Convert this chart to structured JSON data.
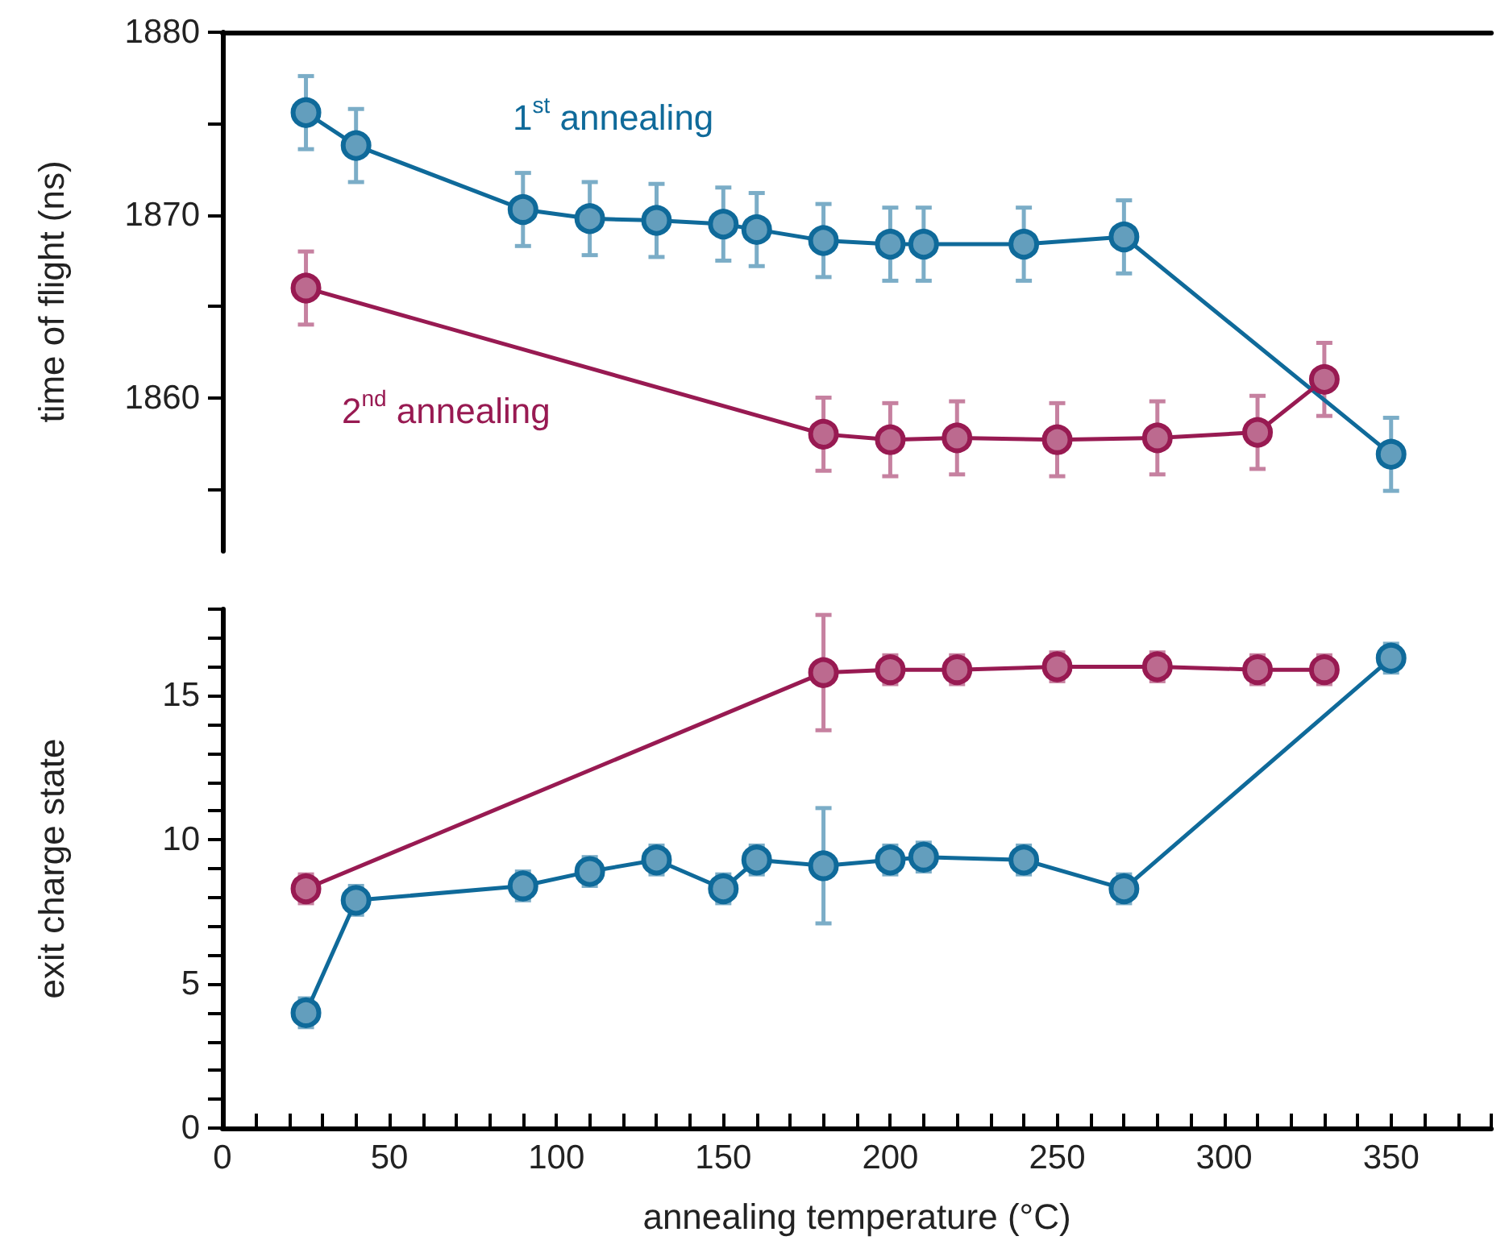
{
  "chart_data": [
    {
      "type": "line",
      "ylabel": "time of flight (ns)",
      "xlim": [
        0,
        380
      ],
      "ylim": [
        1851.6,
        1880
      ],
      "yticks": [
        {
          "value": 1855,
          "label": null
        },
        1860,
        {
          "value": 1865,
          "label": null
        },
        1870,
        {
          "value": 1875,
          "label": null
        },
        1880
      ],
      "tick_labels": "y",
      "grid": false,
      "legend": false,
      "marker": "circle",
      "line_style": "solid",
      "series": [
        {
          "name": "1$^{st}$ annealing",
          "color": "#0f6a9a",
          "x": [
            25,
            40,
            90,
            110,
            130,
            150,
            160,
            180,
            200,
            210,
            240,
            270,
            350
          ],
          "values": [
            1875.6,
            1873.8,
            1870.3,
            1869.8,
            1869.7,
            1869.5,
            1869.2,
            1868.6,
            1868.4,
            1868.4,
            1868.4,
            1868.8,
            1856.9
          ],
          "errors": [
            2,
            2,
            2,
            2,
            2,
            2,
            2,
            2,
            2,
            2,
            2,
            2,
            2
          ]
        },
        {
          "name": "2$^{nd}$ annealing",
          "color": "#981a52",
          "x": [
            25,
            180,
            200,
            220,
            250,
            280,
            310,
            330
          ],
          "values": [
            1866.0,
            1858.0,
            1857.7,
            1857.8,
            1857.7,
            1857.8,
            1858.1,
            1861.0
          ],
          "errors": [
            2,
            2,
            2,
            2,
            2,
            2,
            2,
            2
          ]
        }
      ]
    },
    {
      "type": "line",
      "xlabel": "annealing temperature (°C)",
      "ylabel": "exit charge state",
      "xlim": [
        0,
        380
      ],
      "ylim": [
        0,
        18
      ],
      "xticks": [
        0,
        {
          "value": 10,
          "label": null
        },
        {
          "value": 20,
          "label": null
        },
        {
          "value": 30,
          "label": null
        },
        {
          "value": 40,
          "label": null
        },
        50,
        {
          "value": 60,
          "label": null
        },
        {
          "value": 70,
          "label": null
        },
        {
          "value": 80,
          "label": null
        },
        {
          "value": 90,
          "label": null
        },
        100,
        {
          "value": 110,
          "label": null
        },
        {
          "value": 120,
          "label": null
        },
        {
          "value": 130,
          "label": null
        },
        {
          "value": 140,
          "label": null
        },
        150,
        {
          "value": 160,
          "label": null
        },
        {
          "value": 170,
          "label": null
        },
        {
          "value": 180,
          "label": null
        },
        {
          "value": 190,
          "label": null
        },
        200,
        {
          "value": 210,
          "label": null
        },
        {
          "value": 220,
          "label": null
        },
        {
          "value": 230,
          "label": null
        },
        {
          "value": 240,
          "label": null
        },
        250,
        {
          "value": 260,
          "label": null
        },
        {
          "value": 270,
          "label": null
        },
        {
          "value": 280,
          "label": null
        },
        {
          "value": 290,
          "label": null
        },
        300,
        {
          "value": 310,
          "label": null
        },
        {
          "value": 320,
          "label": null
        },
        {
          "value": 330,
          "label": null
        },
        {
          "value": 340,
          "label": null
        },
        350,
        {
          "value": 360,
          "label": null
        },
        {
          "value": 370,
          "label": null
        },
        {
          "value": 380,
          "label": null
        }
      ],
      "yticks": [
        0,
        {
          "value": 1,
          "label": null
        },
        {
          "value": 2,
          "label": null
        },
        {
          "value": 3,
          "label": null
        },
        {
          "value": 4,
          "label": null
        },
        5,
        {
          "value": 6,
          "label": null
        },
        {
          "value": 7,
          "label": null
        },
        {
          "value": 8,
          "label": null
        },
        {
          "value": 9,
          "label": null
        },
        10,
        {
          "value": 11,
          "label": null
        },
        {
          "value": 12,
          "label": null
        },
        {
          "value": 13,
          "label": null
        },
        {
          "value": 14,
          "label": null
        },
        15,
        {
          "value": 16,
          "label": null
        },
        {
          "value": 17,
          "label": null
        },
        {
          "value": 18,
          "label": null
        }
      ],
      "grid": false,
      "legend": false,
      "marker": "circle",
      "line_style": "solid",
      "series": [
        {
          "color": "#0f6a9a",
          "x": [
            25,
            40,
            90,
            110,
            130,
            150,
            160,
            180,
            200,
            210,
            240,
            270,
            350
          ],
          "values": [
            4.0,
            7.9,
            8.4,
            8.9,
            9.3,
            8.3,
            9.3,
            9.1,
            9.3,
            9.4,
            9.3,
            8.3,
            16.3
          ],
          "errors": [
            0.5,
            0.5,
            0.5,
            0.5,
            0.5,
            0.5,
            0.5,
            2,
            0.5,
            0.5,
            0.5,
            0.5,
            0.5
          ]
        },
        {
          "color": "#981a52",
          "x": [
            25,
            180,
            200,
            220,
            250,
            280,
            310,
            330
          ],
          "values": [
            8.3,
            15.8,
            15.9,
            15.9,
            16.0,
            16.0,
            15.9,
            15.9
          ],
          "errors": [
            0.5,
            2,
            0.5,
            0.5,
            0.5,
            0.5,
            0.5,
            0.5
          ]
        }
      ]
    }
  ]
}
